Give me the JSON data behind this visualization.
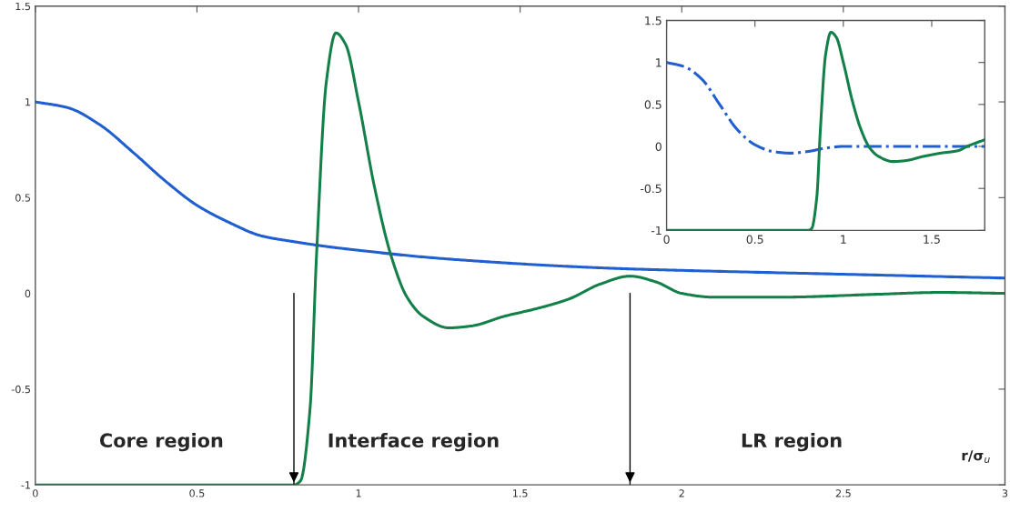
{
  "chart_data": [
    {
      "type": "line",
      "xlabel": "r/σ$_{u}$",
      "xlim": [
        0,
        3
      ],
      "ylim": [
        -1,
        1.5
      ],
      "xticks": [
        0,
        0.5,
        1,
        1.5,
        2,
        2.5,
        3
      ],
      "yticks": [
        -1,
        -0.5,
        0,
        0.5,
        1,
        1.5
      ],
      "grid": false,
      "legend": false,
      "annotations": [
        "Core region",
        "Interface region",
        "LR region"
      ],
      "ref_lines": [
        {
          "axis": "x",
          "value": 0.8,
          "color": "#000000"
        },
        {
          "axis": "x",
          "value": 1.84,
          "color": "#000000"
        }
      ],
      "series": [
        {
          "color": "#1f5fd0",
          "line_style": "solid",
          "x": [
            0,
            0.1,
            0.2,
            0.3,
            0.4,
            0.5,
            0.6,
            0.7,
            0.8,
            0.9,
            1.0,
            1.2,
            1.4,
            1.6,
            1.8,
            2.0,
            2.5,
            3.0
          ],
          "values": [
            1,
            0.97,
            0.88,
            0.74,
            0.59,
            0.46,
            0.37,
            0.3,
            0.27,
            0.245,
            0.225,
            0.19,
            0.165,
            0.145,
            0.13,
            0.12,
            0.1,
            0.08
          ]
        },
        {
          "color": "#13804a",
          "line_style": "solid",
          "x": [
            0,
            0.8,
            0.82,
            0.85,
            0.87,
            0.9,
            0.93,
            0.96,
            1.0,
            1.05,
            1.1,
            1.15,
            1.2,
            1.28,
            1.35,
            1.45,
            1.55,
            1.65,
            1.75,
            1.84,
            1.92,
            2.0,
            2.1,
            2.3,
            2.6,
            2.8,
            3.0
          ],
          "values": [
            -1,
            -1,
            -0.98,
            -0.6,
            0.2,
            1.1,
            1.36,
            1.3,
            1.0,
            0.55,
            0.2,
            -0.02,
            -0.12,
            -0.18,
            -0.17,
            -0.12,
            -0.08,
            -0.03,
            0.05,
            0.09,
            0.06,
            0.0,
            -0.02,
            -0.02,
            -0.005,
            0.005,
            0.0
          ]
        }
      ]
    },
    {
      "type": "line",
      "xlim": [
        0,
        1.8
      ],
      "ylim": [
        -1,
        1.5
      ],
      "xticks": [
        0,
        0.5,
        1,
        1.5
      ],
      "yticks": [
        -1,
        -0.5,
        0,
        0.5,
        1,
        1.5
      ],
      "grid": false,
      "legend": false,
      "series": [
        {
          "color": "#1f5fd0",
          "line_style": "dashdot",
          "x": [
            0,
            0.1,
            0.2,
            0.3,
            0.4,
            0.5,
            0.6,
            0.7,
            0.8,
            0.9,
            1.0,
            1.8
          ],
          "values": [
            1,
            0.95,
            0.8,
            0.5,
            0.2,
            0.02,
            -0.06,
            -0.08,
            -0.06,
            -0.02,
            0,
            0
          ]
        },
        {
          "color": "#13804a",
          "line_style": "solid",
          "x": [
            0,
            0.8,
            0.82,
            0.85,
            0.87,
            0.9,
            0.93,
            0.96,
            1.0,
            1.05,
            1.1,
            1.15,
            1.2,
            1.28,
            1.35,
            1.45,
            1.55,
            1.65,
            1.7,
            1.8
          ],
          "values": [
            -1,
            -1,
            -0.98,
            -0.6,
            0.2,
            1.1,
            1.36,
            1.3,
            1.0,
            0.55,
            0.2,
            -0.02,
            -0.12,
            -0.18,
            -0.17,
            -0.12,
            -0.08,
            -0.05,
            0.0,
            0.08
          ]
        }
      ]
    }
  ]
}
